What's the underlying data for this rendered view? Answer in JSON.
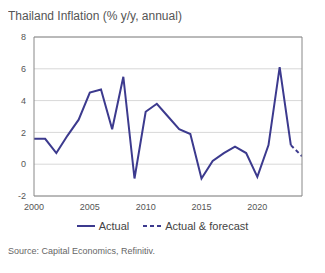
{
  "chart_data": {
    "type": "line",
    "title": "Thailand Inflation (% y/y, annual)",
    "x": [
      2000,
      2001,
      2002,
      2003,
      2004,
      2005,
      2006,
      2007,
      2008,
      2009,
      2010,
      2011,
      2012,
      2013,
      2014,
      2015,
      2016,
      2017,
      2018,
      2019,
      2020,
      2021,
      2022,
      2023,
      2024
    ],
    "series": [
      {
        "name": "Actual",
        "color": "#3c3a8e",
        "line_style": "solid",
        "values": [
          1.6,
          1.6,
          0.7,
          1.8,
          2.8,
          4.5,
          4.7,
          2.2,
          5.5,
          -0.9,
          3.3,
          3.8,
          3.0,
          2.2,
          1.9,
          -0.9,
          0.2,
          0.7,
          1.1,
          0.7,
          -0.8,
          1.2,
          6.1,
          1.2,
          null
        ]
      },
      {
        "name": "Actual & forecast",
        "color": "#3c3a8e",
        "line_style": "dashed",
        "values": [
          null,
          null,
          null,
          null,
          null,
          null,
          null,
          null,
          null,
          null,
          null,
          null,
          null,
          null,
          null,
          null,
          null,
          null,
          null,
          null,
          null,
          null,
          null,
          1.2,
          0.5
        ]
      }
    ],
    "xlim": [
      2000,
      2024
    ],
    "xticks": [
      2000,
      2005,
      2010,
      2015,
      2020
    ],
    "ylim": [
      -2,
      8
    ],
    "yticks": [
      -2,
      0,
      2,
      4,
      6,
      8
    ],
    "grid": "y",
    "legend": "bottom",
    "source": "Source: Capital Economics, Refinitiv."
  }
}
